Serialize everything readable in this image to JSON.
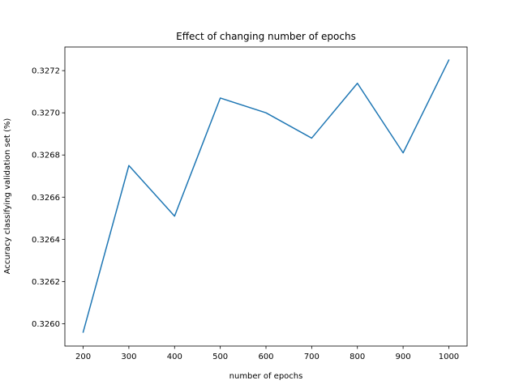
{
  "chart_data": {
    "type": "line",
    "title": "Effect of changing number of epochs",
    "xlabel": "number of epochs",
    "ylabel": "Accuracy classifying validation set (%)",
    "x": [
      200,
      300,
      400,
      500,
      600,
      700,
      800,
      900,
      1000
    ],
    "series": [
      {
        "values": [
          0.32596,
          0.32675,
          0.32651,
          0.32707,
          0.327,
          0.32688,
          0.32714,
          0.32681,
          0.32725
        ],
        "color": "#1f77b4"
      }
    ],
    "xticks": [
      200,
      300,
      400,
      500,
      600,
      700,
      800,
      900,
      1000
    ],
    "xtick_labels": [
      "200",
      "300",
      "400",
      "500",
      "600",
      "700",
      "800",
      "900",
      "1000"
    ],
    "yticks": [
      0.326,
      0.3262,
      0.3264,
      0.3266,
      0.3268,
      0.327,
      0.3272
    ],
    "ytick_labels": [
      "0.3260",
      "0.3262",
      "0.3264",
      "0.3266",
      "0.3268",
      "0.3270",
      "0.3272"
    ],
    "xlim": [
      160,
      1040
    ],
    "ylim": [
      0.325894,
      0.327312
    ],
    "grid": false,
    "legend": "none"
  }
}
